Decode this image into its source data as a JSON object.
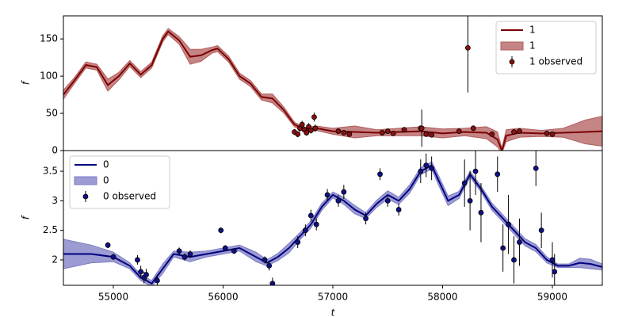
{
  "chart_data": [
    {
      "type": "line",
      "ylabel": "f",
      "legend": "upper right",
      "xlim": [
        54545,
        59455
      ],
      "ylim": [
        0,
        181
      ],
      "yticks": [
        0,
        50,
        100,
        150
      ],
      "series": [
        {
          "name": "1",
          "kind": "line",
          "color": "#7b0000",
          "x": [
            54545,
            54650,
            54750,
            54850,
            54950,
            55050,
            55150,
            55250,
            55350,
            55450,
            55500,
            55600,
            55700,
            55800,
            55900,
            55950,
            56050,
            56150,
            56250,
            56350,
            56450,
            56550,
            56650,
            56750,
            56850,
            57000,
            57200,
            57400,
            57600,
            57800,
            58000,
            58200,
            58400,
            58500,
            58540,
            58580,
            58700,
            58900,
            59100,
            59300,
            59455
          ],
          "values": [
            75,
            95,
            115,
            112,
            88,
            100,
            117,
            102,
            115,
            150,
            160,
            148,
            126,
            128,
            135,
            137,
            123,
            100,
            90,
            72,
            70,
            55,
            35,
            28,
            30,
            26,
            25,
            24,
            25,
            26,
            23,
            25,
            24,
            15,
            0,
            20,
            24,
            23,
            24,
            25,
            26
          ]
        },
        {
          "name": "1",
          "kind": "band",
          "color": "#b35c5c",
          "x": [
            54545,
            54650,
            54750,
            54850,
            54950,
            55050,
            55150,
            55250,
            55350,
            55450,
            55500,
            55600,
            55700,
            55800,
            55900,
            55950,
            56050,
            56150,
            56250,
            56350,
            56450,
            56550,
            56650,
            56750,
            56850,
            57000,
            57200,
            57400,
            57600,
            57800,
            58000,
            58200,
            58400,
            58500,
            58540,
            58580,
            58700,
            58900,
            59100,
            59300,
            59455
          ],
          "lower": [
            69,
            91,
            111,
            108,
            80,
            95,
            113,
            98,
            111,
            146,
            156,
            143,
            116,
            120,
            131,
            133,
            119,
            96,
            86,
            68,
            64,
            51,
            32,
            25,
            27,
            22,
            17,
            20,
            20,
            20,
            17,
            20,
            16,
            5,
            -3,
            12,
            18,
            19,
            18,
            9,
            6
          ],
          "upper": [
            81,
            99,
            119,
            116,
            96,
            105,
            121,
            106,
            119,
            154,
            164,
            153,
            136,
            136,
            139,
            141,
            127,
            104,
            94,
            76,
            76,
            59,
            38,
            31,
            33,
            30,
            33,
            28,
            30,
            32,
            29,
            30,
            32,
            25,
            3,
            28,
            30,
            27,
            30,
            41,
            46
          ]
        },
        {
          "name": "1 observed",
          "kind": "points",
          "color": "#8b1010",
          "x": [
            56650,
            56680,
            56700,
            56720,
            56740,
            56760,
            56780,
            56800,
            56830,
            56840,
            57050,
            57100,
            57150,
            57450,
            57500,
            57550,
            57650,
            57800,
            57810,
            57850,
            57900,
            58150,
            58230,
            58280,
            58450,
            58650,
            58700,
            58950,
            59000
          ],
          "values": [
            25,
            22,
            30,
            35,
            28,
            24,
            32,
            27,
            45,
            30,
            26,
            24,
            22,
            24,
            26,
            23,
            28,
            30,
            30,
            22,
            21,
            26,
            138,
            30,
            22,
            25,
            26,
            23,
            22
          ],
          "errors": [
            4,
            4,
            5,
            5,
            4,
            4,
            5,
            4,
            6,
            5,
            3,
            3,
            3,
            3,
            3,
            3,
            3,
            3,
            25,
            3,
            3,
            3,
            60,
            3,
            3,
            3,
            3,
            3,
            3
          ]
        }
      ]
    },
    {
      "type": "line",
      "ylabel": "f",
      "xlabel": "t",
      "legend": "upper left",
      "xlim": [
        54545,
        59455
      ],
      "ylim": [
        1.57,
        3.85
      ],
      "yticks": [
        2.0,
        2.5,
        3.0,
        3.5
      ],
      "xticks": [
        55000,
        56000,
        57000,
        58000,
        59000
      ],
      "series": [
        {
          "name": "0",
          "kind": "line",
          "color": "#000080",
          "x": [
            54545,
            54800,
            55000,
            55150,
            55250,
            55350,
            55450,
            55550,
            55700,
            55850,
            56000,
            56150,
            56300,
            56400,
            56500,
            56600,
            56700,
            56800,
            56900,
            57000,
            57100,
            57200,
            57300,
            57400,
            57500,
            57600,
            57700,
            57800,
            57900,
            57950,
            58050,
            58150,
            58250,
            58350,
            58450,
            58550,
            58650,
            58750,
            58850,
            58950,
            59050,
            59150,
            59250,
            59350,
            59455
          ],
          "values": [
            2.1,
            2.1,
            2.05,
            1.9,
            1.7,
            1.6,
            1.85,
            2.1,
            2.05,
            2.1,
            2.15,
            2.2,
            2.05,
            1.95,
            2.05,
            2.2,
            2.4,
            2.6,
            2.9,
            3.1,
            3.0,
            2.85,
            2.75,
            2.95,
            3.1,
            3.0,
            3.2,
            3.5,
            3.6,
            3.4,
            3.0,
            3.1,
            3.45,
            3.2,
            2.9,
            2.7,
            2.5,
            2.3,
            2.2,
            2.0,
            1.9,
            1.9,
            1.95,
            1.93,
            1.88
          ]
        },
        {
          "name": "0",
          "kind": "band",
          "color": "#7b7bc4",
          "x": [
            54545,
            54800,
            55000,
            55150,
            55250,
            55350,
            55450,
            55550,
            55700,
            55850,
            56000,
            56150,
            56300,
            56400,
            56500,
            56600,
            56700,
            56800,
            56900,
            57000,
            57100,
            57200,
            57300,
            57400,
            57500,
            57600,
            57700,
            57800,
            57900,
            57950,
            58050,
            58150,
            58250,
            58350,
            58450,
            58550,
            58650,
            58750,
            58850,
            58950,
            59050,
            59150,
            59250,
            59350,
            59455
          ],
          "lower": [
            1.85,
            1.95,
            1.97,
            1.85,
            1.65,
            1.55,
            1.77,
            2.05,
            1.97,
            2.05,
            2.1,
            2.15,
            1.97,
            1.9,
            1.99,
            2.12,
            2.34,
            2.54,
            2.84,
            3.05,
            2.94,
            2.78,
            2.7,
            2.89,
            3.03,
            2.94,
            3.13,
            3.44,
            3.54,
            3.32,
            2.92,
            3.04,
            3.4,
            3.15,
            2.84,
            2.64,
            2.44,
            2.24,
            2.14,
            1.95,
            1.87,
            1.87,
            1.87,
            1.85,
            1.83
          ],
          "upper": [
            2.35,
            2.25,
            2.13,
            1.95,
            1.75,
            1.65,
            1.93,
            2.15,
            2.13,
            2.15,
            2.2,
            2.25,
            2.13,
            2.0,
            2.11,
            2.28,
            2.46,
            2.66,
            2.96,
            3.15,
            3.06,
            2.92,
            2.8,
            3.01,
            3.17,
            3.06,
            3.27,
            3.56,
            3.66,
            3.48,
            3.08,
            3.16,
            3.5,
            3.25,
            2.96,
            2.76,
            2.56,
            2.36,
            2.26,
            2.05,
            1.93,
            1.93,
            2.03,
            2.01,
            1.93
          ]
        },
        {
          "name": "0 observed",
          "kind": "points",
          "color": "#10108a",
          "x": [
            54950,
            55000,
            55220,
            55250,
            55280,
            55300,
            55400,
            55600,
            55650,
            55700,
            55980,
            56020,
            56100,
            56380,
            56420,
            56450,
            56680,
            56750,
            56800,
            56850,
            56950,
            57050,
            57100,
            57300,
            57430,
            57500,
            57600,
            57800,
            57850,
            57900,
            58200,
            58250,
            58300,
            58350,
            58500,
            58550,
            58600,
            58650,
            58700,
            58850,
            58900,
            59000,
            59020
          ],
          "values": [
            2.25,
            2.05,
            2.0,
            1.8,
            1.7,
            1.75,
            1.65,
            2.15,
            2.05,
            2.1,
            2.5,
            2.2,
            2.15,
            2.0,
            1.9,
            1.6,
            2.3,
            2.5,
            2.75,
            2.6,
            3.1,
            3.0,
            3.15,
            2.7,
            3.45,
            3.0,
            2.85,
            3.5,
            3.6,
            3.55,
            3.3,
            3.0,
            3.5,
            2.8,
            3.45,
            2.2,
            2.6,
            2.0,
            2.3,
            3.55,
            2.5,
            2.0,
            1.8
          ],
          "errors": [
            0.05,
            0.05,
            0.08,
            0.1,
            0.1,
            0.1,
            0.1,
            0.06,
            0.06,
            0.06,
            0.05,
            0.05,
            0.05,
            0.06,
            0.08,
            0.1,
            0.1,
            0.1,
            0.1,
            0.1,
            0.1,
            0.1,
            0.12,
            0.1,
            0.1,
            0.1,
            0.1,
            0.2,
            0.2,
            0.2,
            0.4,
            0.5,
            0.4,
            0.5,
            0.3,
            0.4,
            0.5,
            0.4,
            0.4,
            0.3,
            0.3,
            0.3,
            0.3
          ]
        }
      ]
    }
  ]
}
